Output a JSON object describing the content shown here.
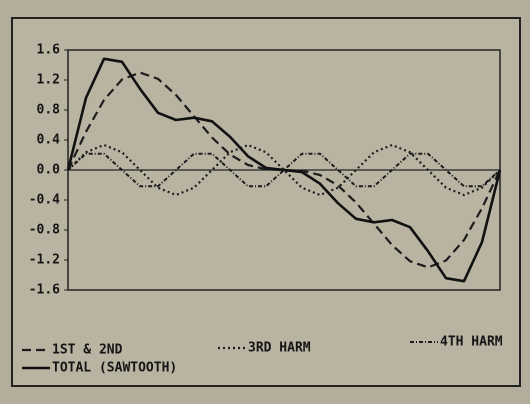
{
  "chart_data": {
    "type": "line",
    "x": [
      0,
      1,
      2,
      3,
      4,
      5,
      6,
      7,
      8,
      9,
      10,
      11,
      12,
      13,
      14,
      15,
      16,
      17,
      18,
      19,
      20,
      21,
      22,
      23,
      24
    ],
    "xlim": [
      0,
      24
    ],
    "ylim": [
      -1.6,
      1.6
    ],
    "yticks": [
      1.6,
      1.2,
      0.8,
      0.4,
      {
        "value": 0,
        "label": "0.0"
      },
      -0.4,
      -0.8,
      -1.2,
      -1.6
    ],
    "zero_line": true,
    "series": [
      {
        "name": "1ST & 2ND",
        "color": "#1c1c1c",
        "style": "dashed",
        "values": [
          0,
          0.509,
          0.933,
          1.207,
          1.299,
          1.216,
          1,
          0.716,
          0.433,
          0.207,
          0.067,
          0.009,
          0,
          -0.009,
          -0.067,
          -0.207,
          -0.433,
          -0.716,
          -1,
          -1.216,
          -1.299,
          -1.207,
          -0.933,
          -0.509,
          0
        ]
      },
      {
        "name": "3RD HARM",
        "color": "#1c1c1c",
        "style": "dotted",
        "values": [
          0,
          0.236,
          0.333,
          0.236,
          0,
          -0.236,
          -0.333,
          -0.236,
          0,
          0.236,
          0.333,
          0.236,
          0,
          -0.236,
          -0.333,
          -0.236,
          0,
          0.236,
          0.333,
          0.236,
          0,
          -0.236,
          -0.333,
          -0.236,
          0
        ]
      },
      {
        "name": "4TH HARM",
        "color": "#1c1c1c",
        "style": "dashdot",
        "values": [
          0,
          0.217,
          0.217,
          0,
          -0.217,
          -0.217,
          0,
          0.217,
          0.217,
          0,
          -0.217,
          -0.217,
          0,
          0.217,
          0.217,
          0,
          -0.217,
          -0.217,
          0,
          0.217,
          0.217,
          0,
          -0.217,
          -0.217,
          0
        ]
      },
      {
        "name": "TOTAL (SAWTOOTH)",
        "color": "#111111",
        "style": "solid",
        "values": [
          0,
          0.962,
          1.483,
          1.443,
          1.082,
          0.763,
          0.667,
          0.697,
          0.65,
          0.443,
          0.183,
          0.028,
          0,
          -0.028,
          -0.183,
          -0.443,
          -0.65,
          -0.697,
          -0.667,
          -0.763,
          -1.082,
          -1.443,
          -1.483,
          -0.962,
          0
        ]
      }
    ]
  }
}
